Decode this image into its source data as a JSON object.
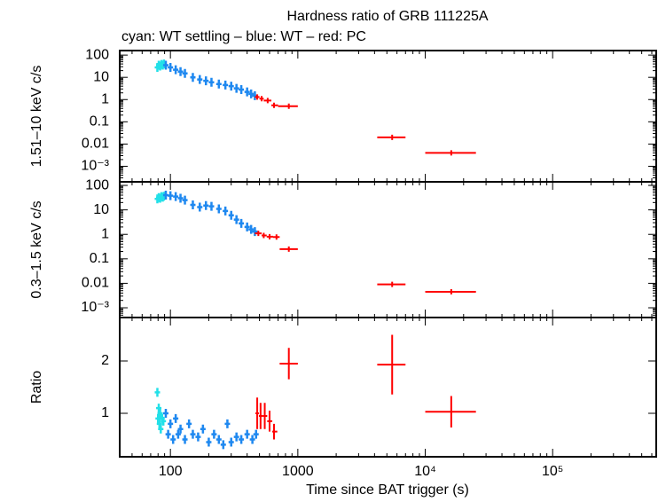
{
  "chart_data": [
    {
      "type": "scatter",
      "title": "Hardness ratio of GRB 111225A",
      "subtitle": "cyan: WT settling – blue: WT – red: PC",
      "ylabel": "1.51–10 keV c/s",
      "log_x": true,
      "log_y": true,
      "xlim": [
        40,
        650000
      ],
      "xticks": [
        100,
        1000,
        10000,
        100000
      ],
      "ylim": [
        0.0002,
        160
      ],
      "yticks": [
        100,
        10,
        1,
        0.1,
        0.01,
        {
          "value": 0.001,
          "label": "10⁻³"
        }
      ],
      "series": [
        {
          "color": "#22e0e8",
          "x": [
            79,
            81,
            83,
            85,
            87,
            89
          ],
          "values": [
            28,
            35,
            32,
            38,
            35,
            40
          ]
        },
        {
          "color": "#1e88f0",
          "x": [
            92,
            100,
            110,
            120,
            130,
            150,
            170,
            190,
            210,
            240,
            270,
            300,
            330,
            360,
            400,
            430,
            460
          ],
          "values": [
            35,
            28,
            22,
            18,
            15,
            10,
            8,
            7,
            6,
            5,
            4.5,
            4,
            3.2,
            2.8,
            2.2,
            1.8,
            1.5
          ]
        },
        {
          "color": "#ff0000",
          "x": [
            480,
            520,
            580,
            650,
            850,
            5500,
            16000
          ],
          "values": [
            1.3,
            1.1,
            0.9,
            0.55,
            0.5,
            0.02,
            0.004
          ],
          "xlo": [
            460,
            500,
            540,
            620,
            700,
            4200,
            10000
          ],
          "xhi": [
            500,
            540,
            620,
            700,
            1000,
            7000,
            25000
          ]
        }
      ]
    },
    {
      "type": "scatter",
      "ylabel": "0.3–1.5 keV c/s",
      "log_x": true,
      "log_y": true,
      "xlim": [
        40,
        650000
      ],
      "xticks": [
        100,
        1000,
        10000,
        100000
      ],
      "ylim": [
        0.0004,
        140
      ],
      "yticks": [
        100,
        10,
        1,
        0.1,
        0.01,
        {
          "value": 0.001,
          "label": "10⁻³"
        }
      ],
      "series": [
        {
          "color": "#22e0e8",
          "x": [
            79,
            81,
            83,
            85,
            87,
            89
          ],
          "values": [
            28,
            32,
            30,
            35,
            33,
            36
          ]
        },
        {
          "color": "#1e88f0",
          "x": [
            92,
            100,
            110,
            120,
            130,
            150,
            170,
            190,
            210,
            240,
            270,
            300,
            330,
            360,
            400,
            430,
            460
          ],
          "values": [
            40,
            38,
            35,
            30,
            25,
            16,
            13,
            15,
            14,
            11,
            9,
            6,
            4,
            2.8,
            2,
            1.6,
            1.3
          ]
        },
        {
          "color": "#ff0000",
          "x": [
            490,
            540,
            600,
            680,
            850,
            5500,
            16000
          ],
          "values": [
            1.1,
            0.9,
            0.8,
            0.78,
            0.25,
            0.009,
            0.0045
          ],
          "xlo": [
            460,
            520,
            570,
            640,
            720,
            4200,
            10000
          ],
          "xhi": [
            520,
            570,
            640,
            720,
            1000,
            7000,
            25000
          ]
        }
      ]
    },
    {
      "type": "scatter",
      "ylabel": "Ratio",
      "xlabel": "Time since BAT trigger (s)",
      "log_x": true,
      "log_y": false,
      "xlim": [
        40,
        650000
      ],
      "xticks": [
        100,
        1000,
        {
          "value": 10000,
          "label": "10⁴"
        },
        {
          "value": 100000,
          "label": "10⁵"
        }
      ],
      "ylim": [
        0.17,
        2.83
      ],
      "yticks": [
        1,
        2
      ],
      "series": [
        {
          "color": "#22e0e8",
          "x": [
            79,
            80,
            81,
            82,
            83,
            84,
            86,
            88
          ],
          "values": [
            1.4,
            0.9,
            1.1,
            0.8,
            1.0,
            0.7,
            0.9,
            0.85
          ]
        },
        {
          "color": "#1e88f0",
          "x": [
            92,
            96,
            100,
            105,
            110,
            115,
            120,
            130,
            140,
            150,
            165,
            180,
            200,
            220,
            240,
            260,
            280,
            300,
            330,
            360,
            400,
            440,
            470
          ],
          "values": [
            1.0,
            0.6,
            0.8,
            0.5,
            0.9,
            0.6,
            0.7,
            0.5,
            0.8,
            0.6,
            0.55,
            0.7,
            0.45,
            0.6,
            0.5,
            0.4,
            0.8,
            0.45,
            0.55,
            0.5,
            0.6,
            0.5,
            0.6
          ]
        },
        {
          "color": "#ff0000",
          "x": [
            480,
            510,
            550,
            600,
            650,
            850,
            5500,
            16000
          ],
          "values": [
            1.0,
            0.95,
            0.95,
            0.85,
            0.65,
            1.95,
            1.93,
            1.03
          ],
          "xlo": [
            465,
            495,
            530,
            575,
            630,
            720,
            4200,
            10000
          ],
          "xhi": [
            495,
            530,
            575,
            630,
            690,
            1000,
            7000,
            25000
          ],
          "yerr": [
            0.3,
            0.25,
            0.25,
            0.2,
            0.15,
            0.3,
            0.57,
            0.3
          ]
        }
      ]
    }
  ]
}
